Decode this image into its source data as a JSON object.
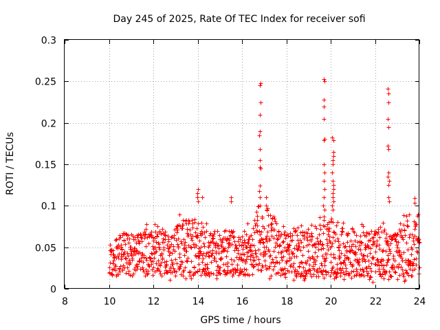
{
  "chart_data": {
    "type": "scatter",
    "title": "Day 245 of 2025, Rate Of TEC Index for receiver sofi",
    "xlabel": "GPS time / hours",
    "ylabel": "ROTI / TECUs",
    "xlim": [
      8,
      24
    ],
    "ylim": [
      0,
      0.3
    ],
    "xticks": [
      8,
      10,
      12,
      14,
      16,
      18,
      20,
      22,
      24
    ],
    "yticks": [
      0,
      0.05,
      0.1,
      0.15,
      0.2,
      0.25,
      0.3
    ],
    "ytick_labels": [
      "0",
      "0.05",
      "0.1",
      "0.15",
      "0.2",
      "0.25",
      "0.3"
    ],
    "grid": true,
    "marker": "+",
    "color": "#ff0000",
    "series": [
      {
        "name": "ROTI",
        "base_x_range": [
          10.0,
          24.0
        ],
        "base_y_typical_range": [
          0.015,
          0.07
        ],
        "spikes": [
          {
            "x": 14.0,
            "y": [
              0.12,
              0.115,
              0.11,
              0.105
            ]
          },
          {
            "x": 14.2,
            "y": [
              0.11
            ]
          },
          {
            "x": 15.5,
            "y": [
              0.11,
              0.105
            ]
          },
          {
            "x": 16.8,
            "y": [
              0.248,
              0.245,
              0.225,
              0.21,
              0.19,
              0.185,
              0.168,
              0.155,
              0.147,
              0.145,
              0.124,
              0.118,
              0.11,
              0.1
            ]
          },
          {
            "x": 17.1,
            "y": [
              0.11,
              0.1,
              0.095
            ]
          },
          {
            "x": 19.7,
            "y": [
              0.253,
              0.25,
              0.228,
              0.22,
              0.205,
              0.181,
              0.179,
              0.15,
              0.14,
              0.13,
              0.12,
              0.11,
              0.1,
              0.095,
              0.087
            ]
          },
          {
            "x": 20.1,
            "y": [
              0.182,
              0.179,
              0.165,
              0.16,
              0.155,
              0.15,
              0.14,
              0.13,
              0.125,
              0.12,
              0.115,
              0.11,
              0.105,
              0.1,
              0.095
            ]
          },
          {
            "x": 22.6,
            "y": [
              0.241,
              0.235,
              0.225,
              0.205,
              0.195,
              0.172,
              0.168,
              0.14,
              0.135,
              0.13,
              0.125,
              0.11,
              0.105
            ]
          },
          {
            "x": 23.8,
            "y": [
              0.109,
              0.104
            ]
          }
        ]
      }
    ]
  }
}
